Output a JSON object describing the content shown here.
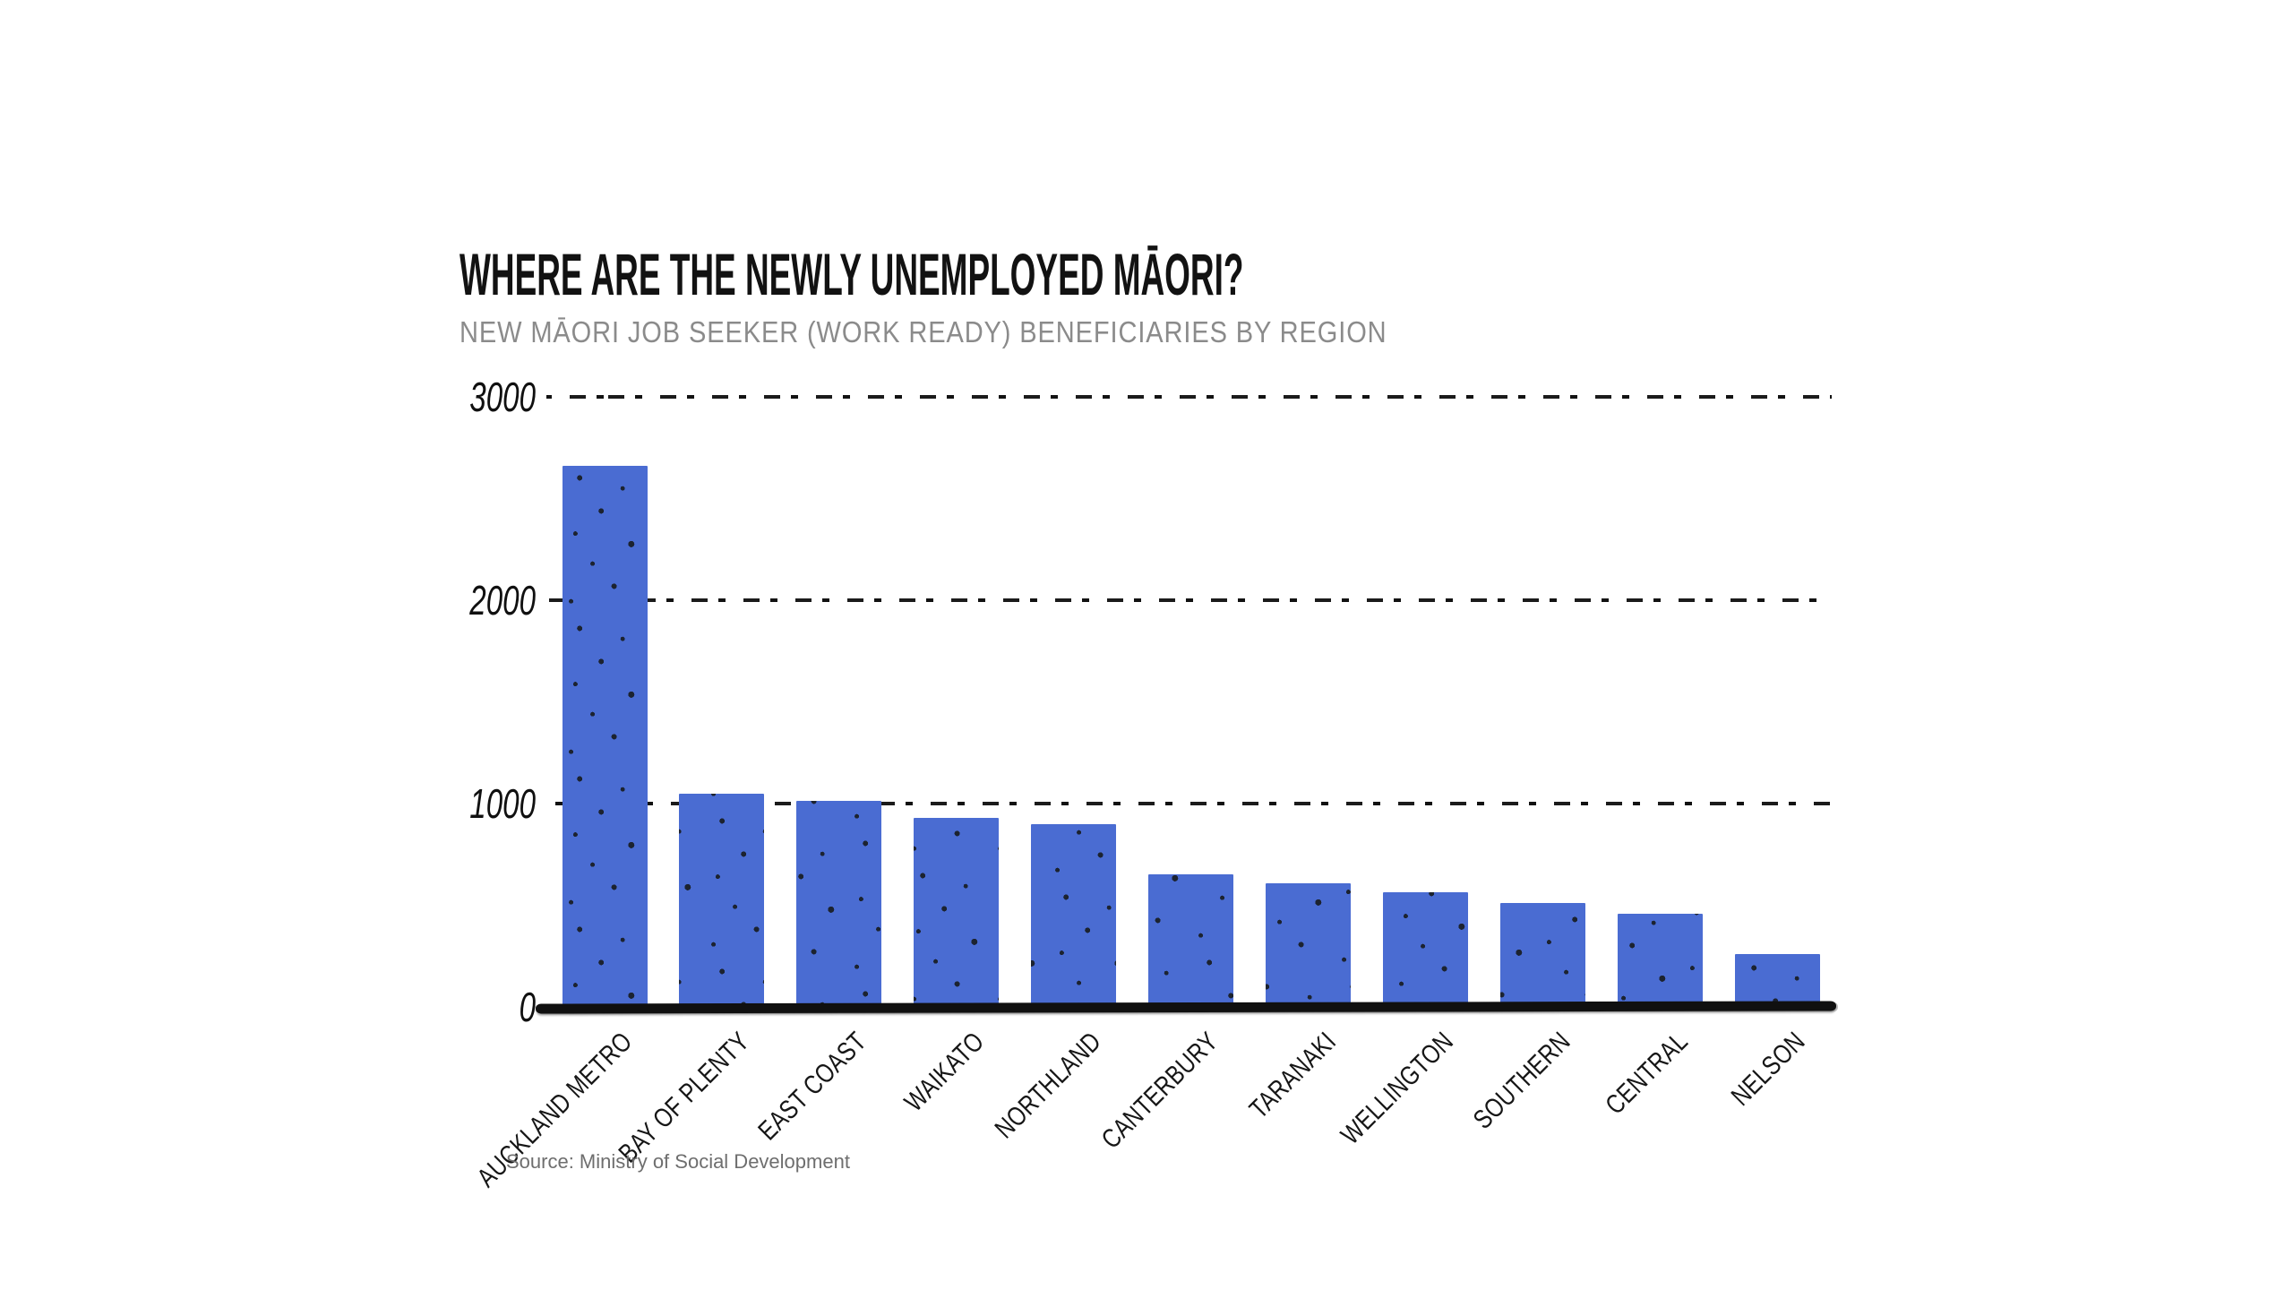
{
  "chart_data": {
    "type": "bar",
    "title": "WHERE ARE THE NEWLY UNEMPLOYED MĀORI?",
    "subtitle": "NEW MĀORI JOB SEEKER (WORK READY) BENEFICIARIES BY REGION",
    "categories": [
      "AUCKLAND METRO",
      "BAY OF PLENTY",
      "EAST COAST",
      "WAIKATO",
      "NORTHLAND",
      "CANTERBURY",
      "TARANAKI",
      "WELLINGTON",
      "SOUTHERN",
      "CENTRAL",
      "NELSON"
    ],
    "values": [
      2660,
      1050,
      1015,
      930,
      900,
      650,
      610,
      565,
      510,
      460,
      260
    ],
    "xlabel": "",
    "ylabel": "",
    "ylim": [
      0,
      3000
    ],
    "y_ticks": [
      0,
      1000,
      2000,
      3000
    ],
    "grid": "horizontal dashed, hand-drawn style",
    "legend": "none",
    "bar_color": "#4a6cd2",
    "speckle_color": "#1c2330",
    "title_color": "#121212",
    "subtitle_color": "#8b8b8b",
    "source": "Source: Ministry of Social Development"
  }
}
